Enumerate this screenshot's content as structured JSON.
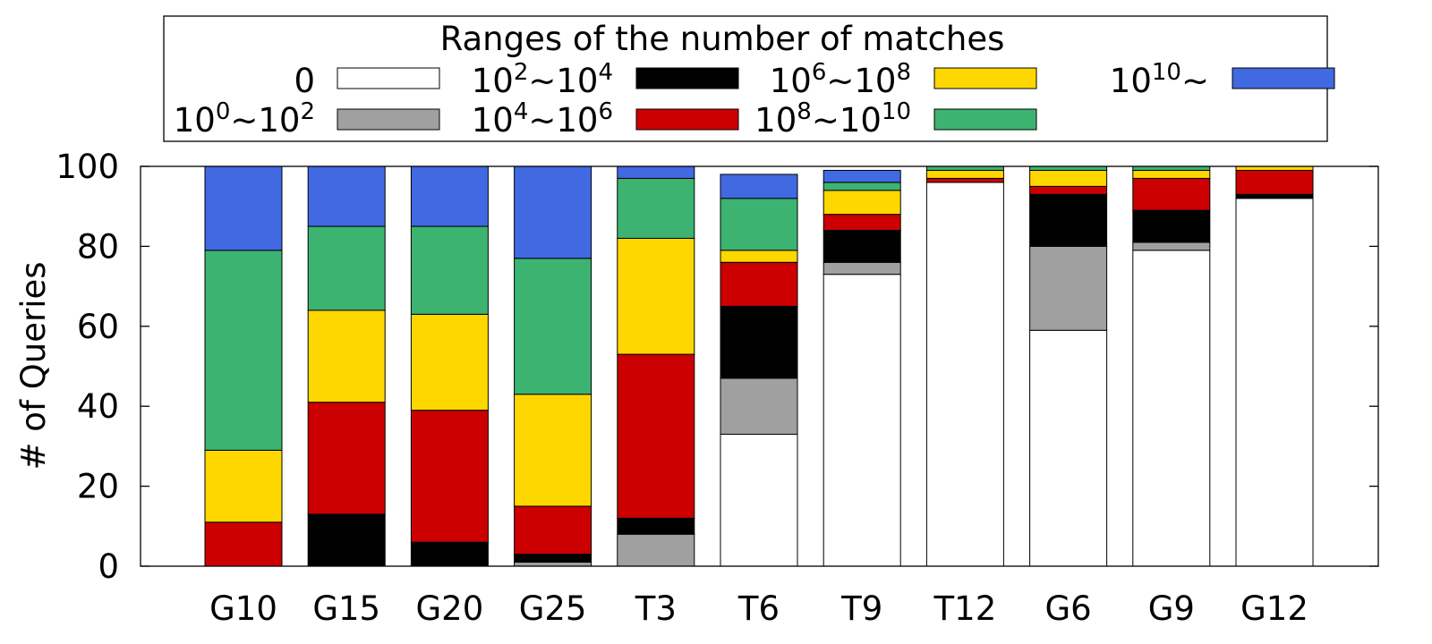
{
  "chart_data": {
    "type": "bar",
    "stacked": true,
    "ylabel": "# of Queries",
    "ylim": [
      0,
      100
    ],
    "yticks": [
      0,
      20,
      40,
      60,
      80,
      100
    ],
    "categories": [
      "G10",
      "G15",
      "G20",
      "G25",
      "T3",
      "T6",
      "T9",
      "T12",
      "G6",
      "G9",
      "G12"
    ],
    "legend": {
      "title": "Ranges of the number of matches",
      "placement": "top-center"
    },
    "series": [
      {
        "name": "0",
        "label_base": "0",
        "label_exp_from": "",
        "label_mid": "",
        "label_exp_to": "",
        "color": "#ffffff",
        "values": [
          0,
          0,
          0,
          0,
          0,
          33,
          73,
          96,
          59,
          79,
          92
        ]
      },
      {
        "name": "10^0~10^2",
        "label_base": "10",
        "label_exp_from": "0",
        "label_mid": "~10",
        "label_exp_to": "2",
        "color": "#a0a0a0",
        "values": [
          0,
          0,
          0,
          1,
          8,
          14,
          3,
          0,
          21,
          2,
          0
        ]
      },
      {
        "name": "10^2~10^4",
        "label_base": "10",
        "label_exp_from": "2",
        "label_mid": "~10",
        "label_exp_to": "4",
        "color": "#000000",
        "values": [
          0,
          13,
          6,
          2,
          4,
          18,
          8,
          0,
          13,
          8,
          1
        ]
      },
      {
        "name": "10^4~10^6",
        "label_base": "10",
        "label_exp_from": "4",
        "label_mid": "~10",
        "label_exp_to": "6",
        "color": "#cc0000",
        "values": [
          11,
          28,
          33,
          12,
          41,
          11,
          4,
          1,
          2,
          8,
          6
        ]
      },
      {
        "name": "10^6~10^8",
        "label_base": "10",
        "label_exp_from": "6",
        "label_mid": "~10",
        "label_exp_to": "8",
        "color": "#ffd700",
        "values": [
          18,
          23,
          24,
          28,
          29,
          3,
          6,
          2,
          4,
          2,
          1
        ]
      },
      {
        "name": "10^8~10^10",
        "label_base": "10",
        "label_exp_from": "8",
        "label_mid": "~10",
        "label_exp_to": "10",
        "color": "#3cb371",
        "values": [
          50,
          21,
          22,
          34,
          15,
          13,
          2,
          1,
          1,
          1,
          0
        ]
      },
      {
        "name": "10^10~",
        "label_base": "10",
        "label_exp_from": "10",
        "label_mid": "~",
        "label_exp_to": "",
        "color": "#4169e1",
        "values": [
          21,
          15,
          15,
          23,
          3,
          6,
          3,
          0,
          0,
          0,
          0
        ]
      }
    ]
  }
}
